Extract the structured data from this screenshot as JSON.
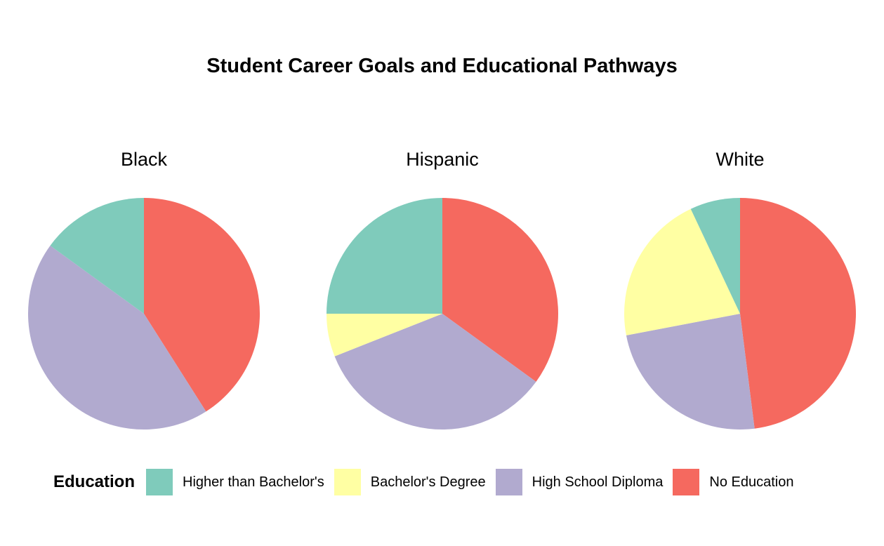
{
  "chart_data": {
    "type": "pie",
    "title": "Student Career Goals and Educational Pathways",
    "legend_title": "Education",
    "legend_position": "bottom",
    "categories": [
      "Higher than Bachelor's",
      "Bachelor's Degree",
      "High School Diploma",
      "No Education"
    ],
    "colors": [
      "#7FCBBB",
      "#FFFFA3",
      "#B1AACF",
      "#F5695F"
    ],
    "facets": [
      {
        "name": "Black",
        "values": [
          15,
          0,
          44,
          41
        ]
      },
      {
        "name": "Hispanic",
        "values": [
          25,
          6,
          34,
          35
        ]
      },
      {
        "name": "White",
        "values": [
          7,
          21,
          24,
          48
        ]
      }
    ]
  }
}
